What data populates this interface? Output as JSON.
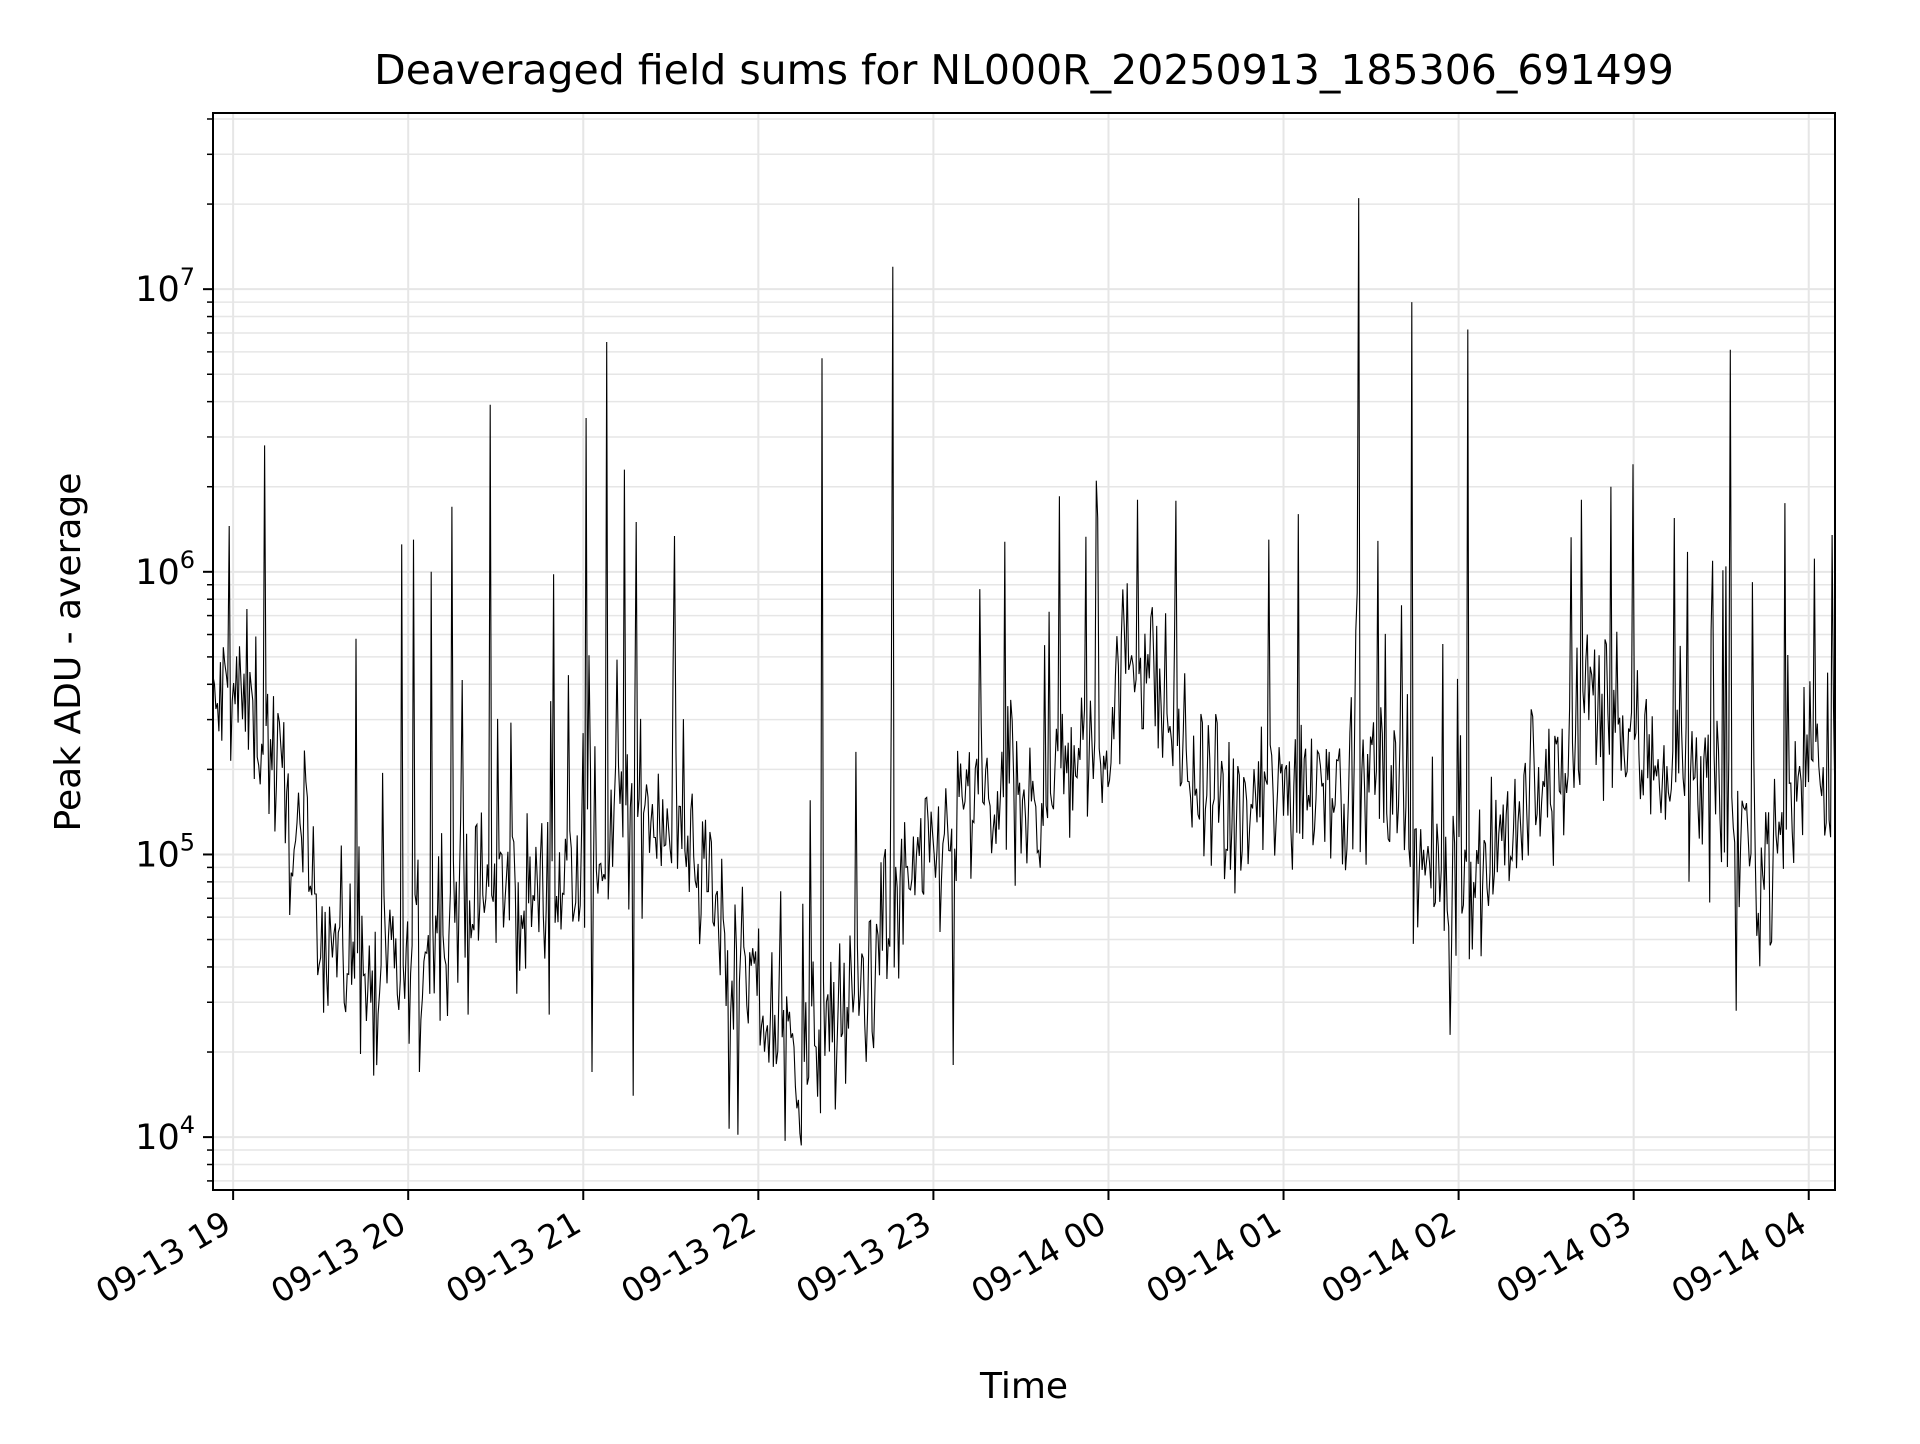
{
  "chart_data": {
    "type": "line",
    "title": "Deaveraged field sums for NL000R_20250913_185306_691499",
    "xlabel": "Time",
    "ylabel": "Peak ADU - average",
    "y_scale": "log",
    "ylim": [
      6500,
      42000000
    ],
    "xlim": [
      "2025-09-13T18:53:06",
      "2025-09-14T04:09:00"
    ],
    "grid": true,
    "line_color": "#000000",
    "grid_color": "#e6e6e6",
    "x_ticks": [
      {
        "value": "2025-09-13T19:00:00",
        "label": "09-13 19"
      },
      {
        "value": "2025-09-13T20:00:00",
        "label": "09-13 20"
      },
      {
        "value": "2025-09-13T21:00:00",
        "label": "09-13 21"
      },
      {
        "value": "2025-09-13T22:00:00",
        "label": "09-13 22"
      },
      {
        "value": "2025-09-13T23:00:00",
        "label": "09-13 23"
      },
      {
        "value": "2025-09-14T00:00:00",
        "label": "09-14 00"
      },
      {
        "value": "2025-09-14T01:00:00",
        "label": "09-14 01"
      },
      {
        "value": "2025-09-14T02:00:00",
        "label": "09-14 02"
      },
      {
        "value": "2025-09-14T03:00:00",
        "label": "09-14 03"
      },
      {
        "value": "2025-09-14T04:00:00",
        "label": "09-14 04"
      }
    ],
    "y_ticks": [
      {
        "value": 10000,
        "base": "10",
        "exp": "4"
      },
      {
        "value": 100000,
        "base": "10",
        "exp": "5"
      },
      {
        "value": 1000000,
        "base": "10",
        "exp": "6"
      },
      {
        "value": 10000000,
        "base": "10",
        "exp": "7"
      }
    ],
    "series": [
      {
        "x": [
          "2025-09-13T18:53:06",
          "2025-09-13T18:58:00",
          "2025-09-13T19:03:00",
          "2025-09-13T19:08:00",
          "2025-09-13T19:12:00",
          "2025-09-13T19:18:00",
          "2025-09-13T19:25:00",
          "2025-09-13T19:32:00",
          "2025-09-13T19:40:00",
          "2025-09-13T19:47:00",
          "2025-09-13T19:55:00",
          "2025-09-13T20:02:00",
          "2025-09-13T20:10:00",
          "2025-09-13T20:17:00",
          "2025-09-13T20:25:00",
          "2025-09-13T20:32:00",
          "2025-09-13T20:40:00",
          "2025-09-13T20:47:00",
          "2025-09-13T20:55:00",
          "2025-09-13T21:02:00",
          "2025-09-13T21:08:00",
          "2025-09-13T21:15:00",
          "2025-09-13T21:22:00",
          "2025-09-13T21:30:00",
          "2025-09-13T21:38:00",
          "2025-09-13T21:45:00",
          "2025-09-13T21:52:00",
          "2025-09-13T22:00:00",
          "2025-09-13T22:08:00",
          "2025-09-13T22:15:00",
          "2025-09-13T22:22:00",
          "2025-09-13T22:30:00",
          "2025-09-13T22:38:00",
          "2025-09-13T22:45:00",
          "2025-09-13T22:52:00",
          "2025-09-13T23:00:00",
          "2025-09-13T23:08:00",
          "2025-09-13T23:15:00",
          "2025-09-13T23:22:00",
          "2025-09-13T23:30:00",
          "2025-09-13T23:38:00",
          "2025-09-13T23:45:00",
          "2025-09-13T23:52:00",
          "2025-09-14T00:00:00",
          "2025-09-14T00:08:00",
          "2025-09-14T00:15:00",
          "2025-09-14T00:22:00",
          "2025-09-14T00:30:00",
          "2025-09-14T00:38:00",
          "2025-09-14T00:45:00",
          "2025-09-14T00:52:00",
          "2025-09-14T01:00:00",
          "2025-09-14T01:08:00",
          "2025-09-14T01:15:00",
          "2025-09-14T01:22:00",
          "2025-09-14T01:30:00",
          "2025-09-14T01:38:00",
          "2025-09-14T01:45:00",
          "2025-09-14T01:52:00",
          "2025-09-14T02:00:00",
          "2025-09-14T02:08:00",
          "2025-09-14T02:15:00",
          "2025-09-14T02:22:00",
          "2025-09-14T02:30:00",
          "2025-09-14T02:38:00",
          "2025-09-14T02:45:00",
          "2025-09-14T02:52:00",
          "2025-09-14T03:00:00",
          "2025-09-14T03:08:00",
          "2025-09-14T03:15:00",
          "2025-09-14T03:22:00",
          "2025-09-14T03:30:00",
          "2025-09-14T03:38:00",
          "2025-09-14T03:45:00",
          "2025-09-14T03:52:00",
          "2025-09-14T04:00:00",
          "2025-09-14T04:09:00"
        ],
        "y": [
          300000,
          380000,
          340000,
          320000,
          250000,
          150000,
          80000,
          55000,
          42000,
          36000,
          34000,
          38000,
          55000,
          65000,
          70000,
          72000,
          70000,
          75000,
          80000,
          95000,
          120000,
          140000,
          150000,
          140000,
          110000,
          70000,
          40000,
          30000,
          22000,
          20000,
          22000,
          27000,
          40000,
          60000,
          75000,
          100000,
          130000,
          160000,
          150000,
          130000,
          160000,
          210000,
          240000,
          270000,
          600000,
          450000,
          280000,
          170000,
          120000,
          130000,
          150000,
          170000,
          190000,
          200000,
          160000,
          180000,
          170000,
          110000,
          80000,
          80000,
          95000,
          120000,
          140000,
          160000,
          200000,
          380000,
          280000,
          230000,
          220000,
          200000,
          180000,
          150000,
          120000,
          90000,
          120000,
          260000,
          190000
        ],
        "spikes": [
          {
            "x": "2025-09-13T19:11:00",
            "y": 2800000
          },
          {
            "x": "2025-09-13T19:42:00",
            "y": 580000
          },
          {
            "x": "2025-09-13T19:58:00",
            "y": 1250000
          },
          {
            "x": "2025-09-13T20:02:00",
            "y": 1300000
          },
          {
            "x": "2025-09-13T20:08:00",
            "y": 1000000
          },
          {
            "x": "2025-09-13T20:15:00",
            "y": 1700000
          },
          {
            "x": "2025-09-13T20:28:00",
            "y": 3900000
          },
          {
            "x": "2025-09-13T20:50:00",
            "y": 980000
          },
          {
            "x": "2025-09-13T21:01:00",
            "y": 3500000
          },
          {
            "x": "2025-09-13T21:08:00",
            "y": 6500000
          },
          {
            "x": "2025-09-13T21:14:00",
            "y": 2300000
          },
          {
            "x": "2025-09-13T21:18:00",
            "y": 1500000
          },
          {
            "x": "2025-09-13T22:22:00",
            "y": 5700000
          },
          {
            "x": "2025-09-13T22:46:00",
            "y": 12000000
          },
          {
            "x": "2025-09-13T23:43:00",
            "y": 1850000
          },
          {
            "x": "2025-09-13T23:56:00",
            "y": 2100000
          },
          {
            "x": "2025-09-14T00:10:00",
            "y": 1800000
          },
          {
            "x": "2025-09-14T00:55:00",
            "y": 1300000
          },
          {
            "x": "2025-09-14T01:05:00",
            "y": 1600000
          },
          {
            "x": "2025-09-14T01:26:00",
            "y": 21000000
          },
          {
            "x": "2025-09-14T01:44:00",
            "y": 9000000
          },
          {
            "x": "2025-09-14T02:03:00",
            "y": 7200000
          },
          {
            "x": "2025-09-14T02:42:00",
            "y": 1800000
          },
          {
            "x": "2025-09-14T02:52:00",
            "y": 2000000
          },
          {
            "x": "2025-09-14T03:00:00",
            "y": 2400000
          },
          {
            "x": "2025-09-14T03:14:00",
            "y": 1550000
          },
          {
            "x": "2025-09-14T03:33:00",
            "y": 6100000
          },
          {
            "x": "2025-09-14T03:52:00",
            "y": 1750000
          },
          {
            "x": "2025-09-14T04:08:00",
            "y": 1350000
          }
        ],
        "dips": [
          {
            "x": "2025-09-13T19:48:00",
            "y": 16500
          },
          {
            "x": "2025-09-13T20:04:00",
            "y": 17000
          },
          {
            "x": "2025-09-13T21:03:00",
            "y": 17000
          },
          {
            "x": "2025-09-13T21:17:00",
            "y": 14000
          },
          {
            "x": "2025-09-13T21:50:00",
            "y": 10700
          },
          {
            "x": "2025-09-13T21:53:00",
            "y": 10200
          },
          {
            "x": "2025-09-13T22:09:00",
            "y": 9700
          },
          {
            "x": "2025-09-13T22:14:00",
            "y": 10300
          },
          {
            "x": "2025-09-13T23:07:00",
            "y": 18000
          },
          {
            "x": "2025-09-14T01:57:00",
            "y": 23000
          },
          {
            "x": "2025-09-14T03:35:00",
            "y": 28000
          }
        ]
      }
    ]
  }
}
